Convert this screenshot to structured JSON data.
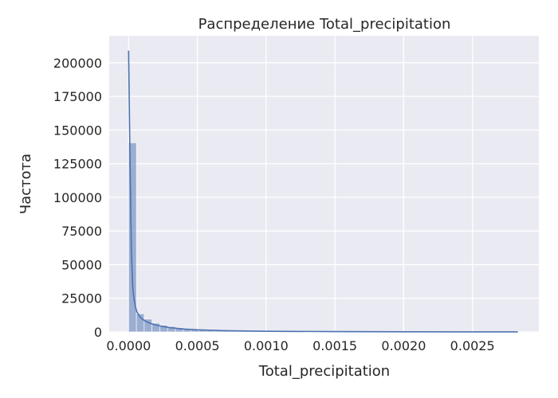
{
  "chart_data": {
    "type": "bar",
    "title": "Распределение Total_precipitation",
    "xlabel": "Total_precipitation",
    "ylabel": "Частота",
    "xlim": [
      -0.000141,
      0.002983
    ],
    "ylim": [
      0,
      220000
    ],
    "xticks": [
      0.0,
      0.0005,
      0.001,
      0.0015,
      0.002,
      0.0025
    ],
    "xtick_labels": [
      "0.0000",
      "0.0005",
      "0.0010",
      "0.0015",
      "0.0020",
      "0.0025"
    ],
    "yticks": [
      0,
      25000,
      50000,
      75000,
      100000,
      125000,
      150000,
      175000,
      200000
    ],
    "ytick_labels": [
      "0",
      "25000",
      "50000",
      "75000",
      "100000",
      "125000",
      "150000",
      "175000",
      "200000"
    ],
    "grid": true,
    "bin_start": 0.0,
    "bin_width": 5.67e-05,
    "bin_counts": [
      140500,
      13500,
      9500,
      6500,
      5000,
      4000,
      3200,
      2500,
      2000,
      1600,
      1300,
      1100,
      900,
      800,
      700,
      600,
      500,
      450,
      400,
      350,
      320,
      300,
      270,
      250,
      230,
      210,
      190,
      170,
      160,
      150,
      140,
      130,
      120,
      110,
      100,
      95,
      90,
      85,
      80,
      75,
      70,
      65,
      60,
      55,
      50,
      45,
      40,
      35,
      30,
      25
    ],
    "kde": {
      "x": [
        0.0,
        1e-05,
        2e-05,
        3e-05,
        4e-05,
        5e-05,
        6e-05,
        8e-05,
        0.0001,
        0.00013,
        0.00016,
        0.0002,
        0.00025,
        0.0003,
        0.0004,
        0.0005,
        0.0007,
        0.001,
        0.0015,
        0.002,
        0.0025,
        0.00283
      ],
      "y": [
        209000,
        130000,
        60000,
        33000,
        24000,
        18500,
        15000,
        11500,
        9500,
        7600,
        6300,
        5100,
        4000,
        3200,
        2200,
        1600,
        900,
        500,
        250,
        130,
        60,
        30
      ]
    },
    "colors": {
      "background": "#EAEAF2",
      "grid": "#FFFFFF",
      "bar_fill": "#4C72B0",
      "kde_line": "#4C72B0"
    }
  }
}
